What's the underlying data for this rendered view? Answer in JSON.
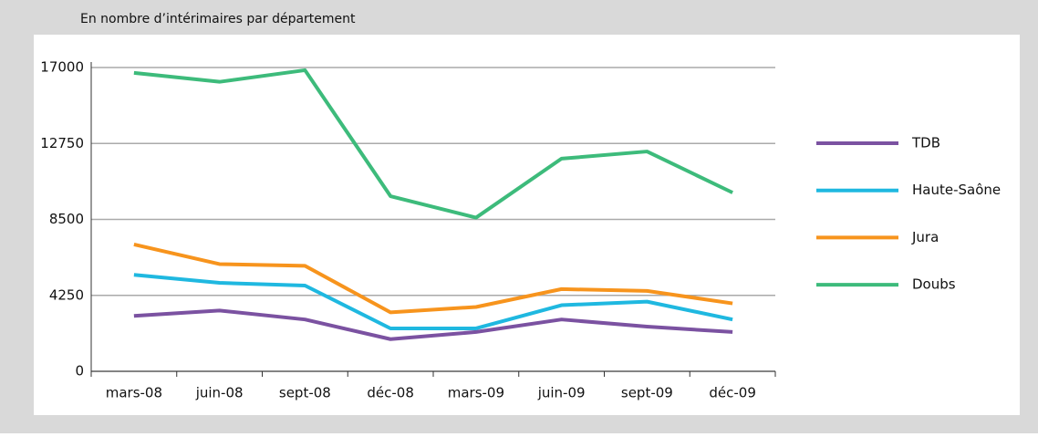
{
  "chart_data": {
    "type": "line",
    "title": "En nombre d’intérimaires par département",
    "categories": [
      "mars-08",
      "juin-08",
      "sept-08",
      "déc-08",
      "mars-09",
      "juin-09",
      "sept-09",
      "déc-09"
    ],
    "series": [
      {
        "name": "TDB",
        "color": "#7b52a1",
        "values": [
          3100,
          3400,
          2900,
          1800,
          2200,
          2900,
          2500,
          2200
        ]
      },
      {
        "name": "Haute-Saône",
        "color": "#1fb8e0",
        "values": [
          5400,
          4950,
          4800,
          2400,
          2400,
          3700,
          3900,
          2900
        ]
      },
      {
        "name": "Jura",
        "color": "#f7941d",
        "values": [
          7100,
          6000,
          5900,
          3300,
          3600,
          4600,
          4500,
          3800
        ]
      },
      {
        "name": "Doubs",
        "color": "#3dbb7b",
        "values": [
          16700,
          16200,
          16850,
          9800,
          8600,
          11900,
          12300,
          10000
        ]
      }
    ],
    "ylim": [
      0,
      17000
    ],
    "yticks": [
      0,
      4250,
      8500,
      12750,
      17000
    ],
    "grid": true,
    "legend": "right"
  }
}
